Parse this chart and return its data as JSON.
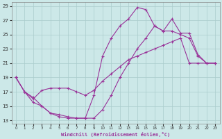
{
  "background_color": "#cce8e8",
  "grid_color": "#aacccc",
  "line_color": "#993399",
  "xlabel": "Windchill (Refroidissement éolien,°C)",
  "xlim_min": -0.5,
  "xlim_max": 23.5,
  "ylim_min": 12.5,
  "ylim_max": 29.5,
  "xticks": [
    0,
    1,
    2,
    3,
    4,
    5,
    6,
    7,
    8,
    9,
    10,
    11,
    12,
    13,
    14,
    15,
    16,
    17,
    18,
    19,
    20,
    21,
    22,
    23
  ],
  "yticks": [
    13,
    15,
    17,
    19,
    21,
    23,
    25,
    27,
    29
  ],
  "line1_x": [
    0,
    1,
    2,
    3,
    4,
    5,
    6,
    7,
    8,
    9,
    10,
    11,
    12,
    13,
    14,
    15,
    16,
    17,
    18,
    19,
    20,
    21,
    22,
    23
  ],
  "line1_y": [
    19.0,
    17.0,
    15.5,
    15.0,
    14.0,
    13.5,
    13.3,
    13.3,
    13.3,
    16.5,
    22.0,
    24.5,
    26.2,
    27.2,
    28.8,
    28.5,
    26.2,
    25.5,
    27.2,
    25.2,
    25.2,
    22.2,
    21.0,
    21.0
  ],
  "line2_x": [
    0,
    1,
    2,
    3,
    4,
    5,
    6,
    7,
    8,
    9,
    10,
    11,
    12,
    13,
    14,
    15,
    16,
    17,
    18,
    19,
    20,
    21,
    22,
    23
  ],
  "line2_y": [
    19.0,
    17.0,
    16.0,
    17.2,
    17.5,
    17.5,
    17.5,
    17.0,
    16.5,
    17.2,
    18.5,
    19.5,
    20.5,
    21.5,
    22.0,
    22.5,
    23.0,
    23.5,
    24.0,
    24.5,
    21.0,
    21.0,
    21.0,
    21.0
  ],
  "line3_x": [
    0,
    1,
    2,
    3,
    4,
    5,
    6,
    7,
    8,
    9,
    10,
    11,
    12,
    13,
    14,
    15,
    16,
    17,
    18,
    19,
    20,
    21,
    22,
    23
  ],
  "line3_y": [
    19.0,
    17.0,
    16.2,
    15.0,
    14.0,
    13.8,
    13.5,
    13.3,
    13.3,
    13.3,
    14.5,
    16.5,
    19.0,
    21.0,
    23.0,
    24.5,
    26.2,
    25.5,
    25.5,
    25.0,
    24.5,
    22.0,
    21.0,
    21.0
  ]
}
